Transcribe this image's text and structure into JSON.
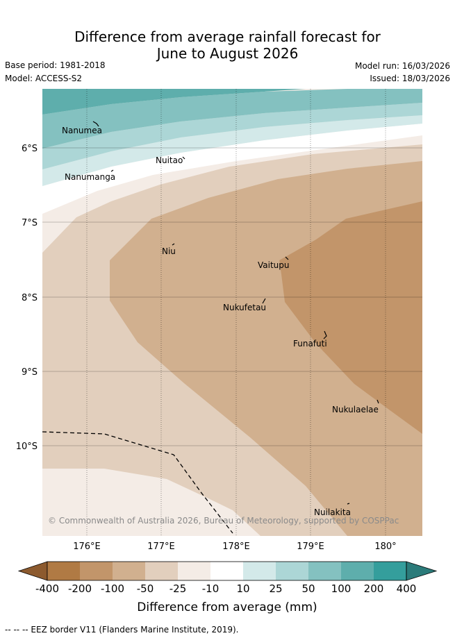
{
  "title": {
    "line1": "Difference from average rainfall forecast for",
    "line2": "June to August 2026"
  },
  "meta": {
    "base_period": "Base period: 1981-2018",
    "model": "Model: ACCESS-S2",
    "model_run": "Model run: 16/03/2026",
    "issued": "Issued: 18/03/2026"
  },
  "axes": {
    "lat_labels": [
      "6°S",
      "7°S",
      "8°S",
      "9°S",
      "10°S"
    ],
    "lon_labels": [
      "176°E",
      "177°E",
      "178°E",
      "179°E",
      "180°"
    ]
  },
  "places": [
    "Nanumea",
    "Nuitao",
    "Nanumanga",
    "Niu",
    "Vaitupu",
    "Nukufetau",
    "Funafuti",
    "Nukulaelae",
    "Nuilakita"
  ],
  "copyright": "© Commonwealth of Australia 2026, Bureau of Meteorology, supported by COSPPac",
  "colorbar": {
    "ticks": [
      "-400",
      "-200",
      "-100",
      "-50",
      "-25",
      "-10",
      "10",
      "25",
      "50",
      "100",
      "200",
      "400"
    ],
    "colors": [
      "#8c5a2e",
      "#b07a44",
      "#c2956a",
      "#d1b08f",
      "#e2cfbd",
      "#f4ece6",
      "#ffffff",
      "#d3e9e9",
      "#acd6d6",
      "#84c1c0",
      "#5eaeac",
      "#349e9c",
      "#2b7b7a"
    ],
    "label": "Difference from average (mm)"
  },
  "eez_legend": "-- -- -- EEZ border V11 (Flanders Marine Institute, 2019)."
}
